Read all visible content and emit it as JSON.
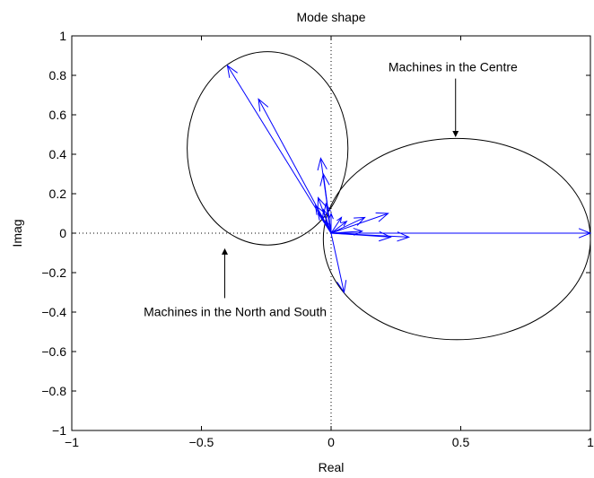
{
  "chart_data": {
    "type": "line",
    "title": "Mode shape",
    "xlabel": "Real",
    "ylabel": "Imag",
    "xlim": [
      -1,
      1
    ],
    "ylim": [
      -1,
      1
    ],
    "xticks": [
      -1,
      -0.5,
      0,
      0.5,
      1
    ],
    "xtick_labels": [
      "−1",
      "−0.5",
      "0",
      "0.5",
      "1"
    ],
    "yticks": [
      -1,
      -0.8,
      -0.6,
      -0.4,
      -0.2,
      0,
      0.2,
      0.4,
      0.6,
      0.8,
      1
    ],
    "ytick_labels": [
      "−1",
      "−0.8",
      "−0.6",
      "−0.4",
      "−0.2",
      "0",
      "0.2",
      "0.4",
      "0.6",
      "0.8",
      "1"
    ],
    "grid": false,
    "zero_lines": true,
    "ellipses": [
      {
        "cx": -0.245,
        "cy": 0.43,
        "rx": 0.31,
        "ry": 0.49
      },
      {
        "cx": 0.485,
        "cy": -0.03,
        "rx": 0.515,
        "ry": 0.51
      }
    ],
    "arrows_color": "#0000ff",
    "vectors": [
      [
        -0.4,
        0.85
      ],
      [
        -0.28,
        0.68
      ],
      [
        -0.04,
        0.38
      ],
      [
        -0.03,
        0.3
      ],
      [
        -0.05,
        0.18
      ],
      [
        -0.02,
        0.15
      ],
      [
        -0.06,
        0.14
      ],
      [
        -0.03,
        0.12
      ],
      [
        -0.05,
        0.1
      ],
      [
        0.0,
        0.1
      ],
      [
        0.04,
        0.08
      ],
      [
        -0.02,
        0.06
      ],
      [
        0.22,
        0.1
      ],
      [
        0.13,
        0.08
      ],
      [
        0.06,
        0.06
      ],
      [
        0.12,
        0.01
      ],
      [
        0.23,
        -0.02
      ],
      [
        0.3,
        -0.02
      ],
      [
        0.05,
        -0.3
      ],
      [
        1.0,
        0.0
      ]
    ],
    "annotations": [
      {
        "text": "Machines in the Centre",
        "x": 0.47,
        "y": 0.82,
        "arrow_to": [
          0.48,
          0.49
        ]
      },
      {
        "text": "Machines in the North and South",
        "x": -0.37,
        "y": -0.42,
        "arrow_to": [
          -0.41,
          -0.08
        ]
      }
    ]
  }
}
